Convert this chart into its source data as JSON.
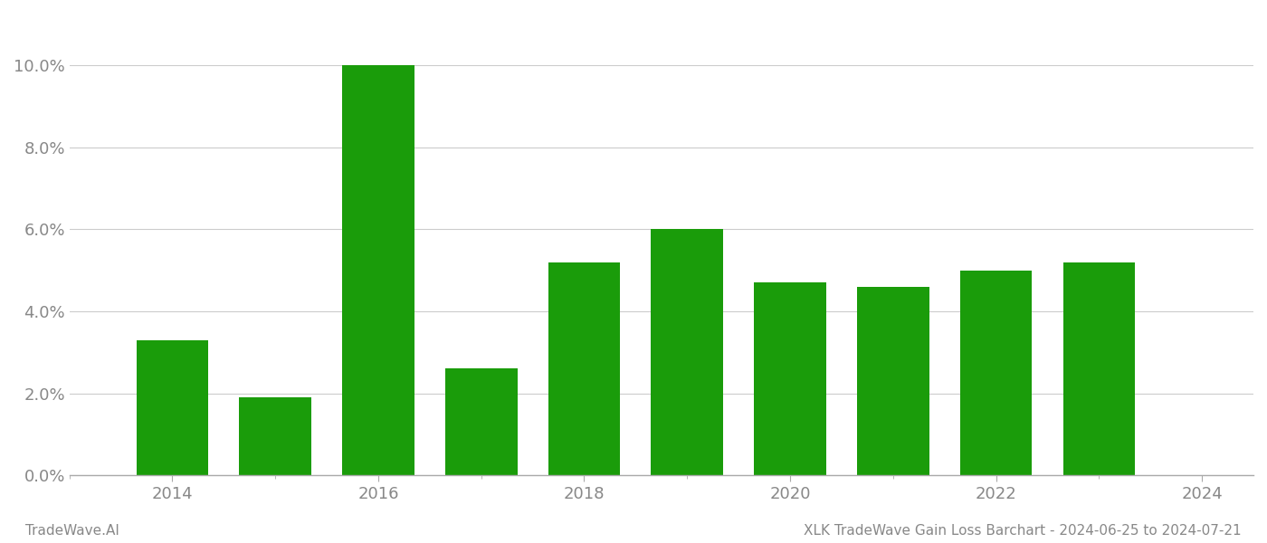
{
  "years": [
    2014,
    2015,
    2016,
    2017,
    2018,
    2019,
    2020,
    2021,
    2022,
    2023
  ],
  "values": [
    0.033,
    0.019,
    0.1,
    0.026,
    0.052,
    0.06,
    0.047,
    0.046,
    0.05,
    0.052
  ],
  "bar_color": "#1a9c0a",
  "background_color": "#ffffff",
  "grid_color": "#cccccc",
  "axis_color": "#aaaaaa",
  "tick_color": "#888888",
  "ylim": [
    0,
    0.11
  ],
  "yticks": [
    0.0,
    0.02,
    0.04,
    0.06,
    0.08,
    0.1
  ],
  "xlim": [
    2013.0,
    2024.5
  ],
  "major_xticks": [
    2014,
    2016,
    2018,
    2020,
    2022,
    2024
  ],
  "minor_xticks": [
    2013,
    2014,
    2015,
    2016,
    2017,
    2018,
    2019,
    2020,
    2021,
    2022,
    2023,
    2024
  ],
  "bar_width": 0.7,
  "footer_left": "TradeWave.AI",
  "footer_right": "XLK TradeWave Gain Loss Barchart - 2024-06-25 to 2024-07-21",
  "footer_color": "#888888",
  "footer_fontsize": 11,
  "tick_fontsize": 13,
  "ytick_fontsize": 13
}
